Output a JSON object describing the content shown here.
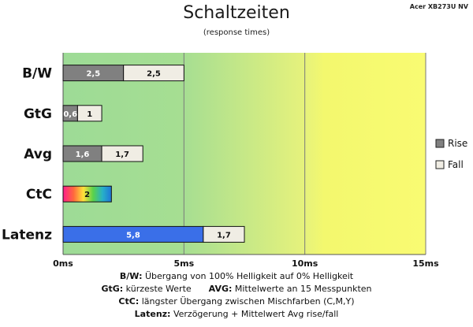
{
  "header": {
    "title": "Schaltzeiten",
    "subtitle": "(response times)",
    "corner_label": "Acer XB273U NV"
  },
  "chart_data": {
    "type": "bar",
    "orientation": "horizontal",
    "categories": [
      "B/W",
      "GtG",
      "Avg",
      "CtC",
      "Latenz"
    ],
    "series": [
      {
        "name": "Rise",
        "color": "#808080",
        "values": [
          2.5,
          0.6,
          1.6,
          null,
          null
        ]
      },
      {
        "name": "Fall",
        "color": "#f0ede4",
        "values": [
          2.5,
          1,
          1.7,
          null,
          1.7
        ]
      }
    ],
    "extra_bars": [
      {
        "category": "CtC",
        "label": "2",
        "value": 2,
        "fill": "rainbow"
      },
      {
        "category": "Latenz",
        "label": "5,8",
        "value": 5.8,
        "fill": "#3a6fe8"
      }
    ],
    "data_labels": {
      "B/W": [
        "2,5",
        "2,5"
      ],
      "GtG": [
        "0,6",
        "1"
      ],
      "Avg": [
        "1,6",
        "1,7"
      ],
      "CtC": [
        "2"
      ],
      "Latenz": [
        "5,8",
        "1,7"
      ]
    },
    "x_ticks": [
      "0ms",
      "5ms",
      "10ms",
      "15ms"
    ],
    "xlim": [
      0,
      15
    ],
    "unit": "ms",
    "background_zones": [
      {
        "from": 0,
        "to": 5,
        "color": "green"
      },
      {
        "from": 5,
        "to": 10,
        "color": "green-to-yellow"
      },
      {
        "from": 10,
        "to": 15,
        "color": "yellow"
      }
    ],
    "legend": {
      "position": "right",
      "entries": [
        "Rise",
        "Fall"
      ]
    },
    "grid": true
  },
  "footnotes": [
    {
      "term": "B/W:",
      "text": " Übergang von 100% Helligkeit auf 0% Helligkeit"
    },
    {
      "term": "GtG:",
      "text": " kürzeste Werte",
      "term2": "AVG:",
      "text2": " Mittelwerte an 15 Messpunkten"
    },
    {
      "term": "CtC:",
      "text": " längster Übergang zwischen Mischfarben (C,M,Y)"
    },
    {
      "term": "Latenz:",
      "text": " Verzögerung + Mittelwert Avg rise/fall"
    }
  ]
}
